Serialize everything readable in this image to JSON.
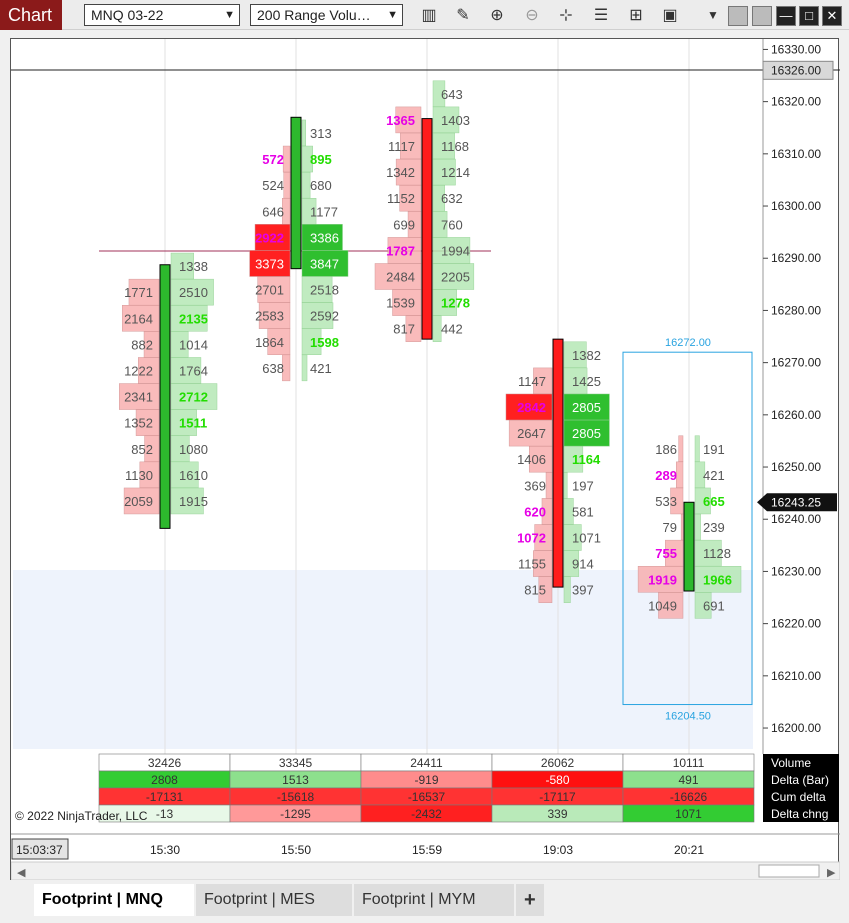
{
  "toolbar": {
    "app_label": "Chart",
    "instrument": "MNQ 03-22",
    "bar_type": "200 Range Volu…",
    "icons": [
      "data-series-icon",
      "drawing-tools-icon",
      "zoom-in-icon",
      "zoom-out-icon",
      "crosshair-icon",
      "chart-properties-icon",
      "templates-icon",
      "screenshot-icon",
      "dropdown-icon"
    ]
  },
  "window_controls": {
    "minimize": "—",
    "maximize": "□",
    "close": "✕"
  },
  "price_axis": {
    "ticks": [
      "16330.00",
      "16320.00",
      "16310.00",
      "16300.00",
      "16290.00",
      "16280.00",
      "16270.00",
      "16260.00",
      "16250.00",
      "16240.00",
      "16230.00",
      "16220.00",
      "16210.00",
      "16200.00"
    ],
    "top_marker": "16326.00",
    "current_price": "16243.25"
  },
  "time_axis": {
    "current_time": "15:03:37",
    "labels": [
      "15:30",
      "15:50",
      "15:59",
      "19:03",
      "20:21"
    ]
  },
  "copyright": "© 2022 NinjaTrader, LLC",
  "selection_box": {
    "top_label": "16272.00",
    "bottom_label": "16204.50"
  },
  "colors": {
    "up": "#2db82d",
    "down": "#ff1c1c",
    "imbalance_text": "#e600e6",
    "ask_imbalance_text": "#22dd00",
    "selection": "#29a3e0",
    "band": "#eef3fc"
  },
  "bars": [
    {
      "time": "15:30",
      "open": 16238.25,
      "close": 16288.75,
      "up": true,
      "levels": [
        {
          "price": 16288.5,
          "bid": "",
          "ask": "1338"
        },
        {
          "price": 16283.5,
          "bid": "1771",
          "ask": "2510"
        },
        {
          "price": 16278.5,
          "bid": "2164",
          "ask": "2135",
          "ask_imb": true
        },
        {
          "price": 16273.5,
          "bid": "882",
          "ask": "1014"
        },
        {
          "price": 16268.5,
          "bid": "1222",
          "ask": "1764"
        },
        {
          "price": 16263.5,
          "bid": "2341",
          "ask": "2712",
          "ask_imb": true
        },
        {
          "price": 16258.5,
          "bid": "1352",
          "ask": "1511",
          "ask_imb": true
        },
        {
          "price": 16253.5,
          "bid": "852",
          "ask": "1080"
        },
        {
          "price": 16248.5,
          "bid": "1130",
          "ask": "1610"
        },
        {
          "price": 16243.5,
          "bid": "2059",
          "ask": "1915"
        }
      ]
    },
    {
      "time": "15:50",
      "open": 16288.0,
      "close": 16317.0,
      "up": true,
      "levels": [
        {
          "price": 16314.0,
          "bid": "",
          "ask": "313"
        },
        {
          "price": 16309.0,
          "bid": "572",
          "ask": "895",
          "bid_imb": true,
          "ask_imb": true
        },
        {
          "price": 16304.0,
          "bid": "524",
          "ask": "680"
        },
        {
          "price": 16299.0,
          "bid": "646",
          "ask": "1177"
        },
        {
          "price": 16294.0,
          "bid": "2922",
          "ask": "3386",
          "bid_imb": true
        },
        {
          "price": 16289.0,
          "bid": "3373",
          "ask": "3847"
        },
        {
          "price": 16284.0,
          "bid": "2701",
          "ask": "2518"
        },
        {
          "price": 16279.0,
          "bid": "2583",
          "ask": "2592"
        },
        {
          "price": 16274.0,
          "bid": "1864",
          "ask": "1598",
          "ask_imb": true
        },
        {
          "price": 16269.0,
          "bid": "638",
          "ask": "421"
        }
      ]
    },
    {
      "time": "15:59",
      "open": 16316.75,
      "close": 16274.5,
      "up": false,
      "levels": [
        {
          "price": 16321.5,
          "bid": "",
          "ask": "643"
        },
        {
          "price": 16316.5,
          "bid": "1365",
          "ask": "1403",
          "bid_imb": true
        },
        {
          "price": 16311.5,
          "bid": "1117",
          "ask": "1168"
        },
        {
          "price": 16306.5,
          "bid": "1342",
          "ask": "1214"
        },
        {
          "price": 16301.5,
          "bid": "1152",
          "ask": "632"
        },
        {
          "price": 16296.5,
          "bid": "699",
          "ask": "760"
        },
        {
          "price": 16291.5,
          "bid": "1787",
          "ask": "1994",
          "bid_imb": true
        },
        {
          "price": 16286.5,
          "bid": "2484",
          "ask": "2205"
        },
        {
          "price": 16281.5,
          "bid": "1539",
          "ask": "1278",
          "ask_imb": true
        },
        {
          "price": 16276.5,
          "bid": "817",
          "ask": "442"
        }
      ]
    },
    {
      "time": "19:03",
      "open": 16274.5,
      "close": 16227.0,
      "up": false,
      "levels": [
        {
          "price": 16271.5,
          "bid": "",
          "ask": "1382"
        },
        {
          "price": 16266.5,
          "bid": "1147",
          "ask": "1425"
        },
        {
          "price": 16261.5,
          "bid": "2842",
          "ask": "2805",
          "bid_imb": true
        },
        {
          "price": 16256.5,
          "bid": "2647",
          "ask": "2805"
        },
        {
          "price": 16251.5,
          "bid": "1406",
          "ask": "1164",
          "ask_imb": true
        },
        {
          "price": 16246.5,
          "bid": "369",
          "ask": "197"
        },
        {
          "price": 16241.5,
          "bid": "620",
          "ask": "581",
          "bid_imb": true
        },
        {
          "price": 16236.5,
          "bid": "1072",
          "ask": "1071",
          "bid_imb": true
        },
        {
          "price": 16231.5,
          "bid": "1155",
          "ask": "914"
        },
        {
          "price": 16226.5,
          "bid": "815",
          "ask": "397"
        }
      ]
    },
    {
      "time": "20:21",
      "open": 16226.25,
      "close": 16243.25,
      "up": true,
      "levels": [
        {
          "price": 16253.5,
          "bid": "186",
          "ask": "191"
        },
        {
          "price": 16248.5,
          "bid": "289",
          "ask": "421",
          "bid_imb": true
        },
        {
          "price": 16243.5,
          "bid": "533",
          "ask": "665",
          "ask_imb": true
        },
        {
          "price": 16238.5,
          "bid": "79",
          "ask": "239"
        },
        {
          "price": 16233.5,
          "bid": "755",
          "ask": "1128",
          "bid_imb": true
        },
        {
          "price": 16228.5,
          "bid": "1919",
          "ask": "1966",
          "bid_imb": true,
          "ask_imb": true
        },
        {
          "price": 16223.5,
          "bid": "1049",
          "ask": "691"
        }
      ]
    }
  ],
  "summary": {
    "row_labels": [
      "Volume",
      "Delta (Bar)",
      "Cum delta",
      "Delta chng"
    ],
    "cols": [
      {
        "volume": "32426",
        "delta": "2808",
        "cum": "-17131",
        "chng": "-13"
      },
      {
        "volume": "33345",
        "delta": "1513",
        "cum": "-15618",
        "chng": "-1295"
      },
      {
        "volume": "24411",
        "delta": "-919",
        "cum": "-16537",
        "chng": "-2432"
      },
      {
        "volume": "26062",
        "delta": "-580",
        "cum": "-17117",
        "chng": "339"
      },
      {
        "volume": "10111",
        "delta": "491",
        "cum": "-16626",
        "chng": "1071"
      }
    ]
  },
  "tabs": [
    "Footprint  |  MNQ",
    "Footprint  |  MES",
    "Footprint  |  MYM",
    "+"
  ]
}
